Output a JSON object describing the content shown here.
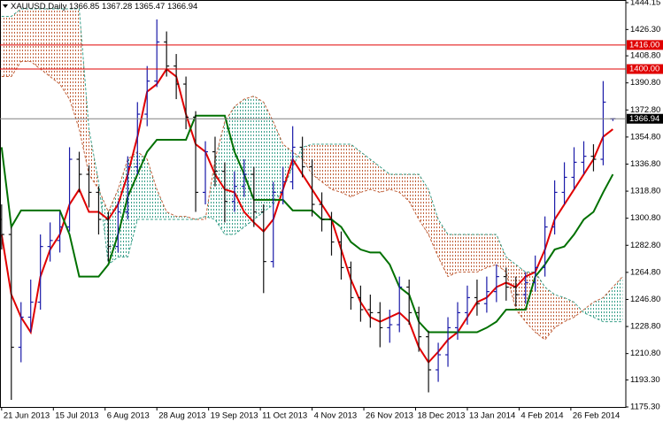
{
  "chart_data": {
    "type": "ohlc",
    "symbol": "XAUUSD,Daily",
    "x": [
      0,
      3,
      6,
      9,
      12,
      15,
      18,
      21,
      24,
      27,
      30,
      33,
      36,
      39,
      42,
      45,
      48,
      51,
      54,
      57,
      60,
      63,
      66,
      69,
      72,
      75,
      78,
      81,
      84,
      87,
      90,
      93,
      96,
      99,
      102,
      105,
      108,
      111,
      114,
      117,
      120,
      123,
      126,
      129,
      132,
      135,
      138,
      141,
      144,
      147,
      150,
      153,
      156,
      159,
      162,
      165,
      168,
      171,
      174,
      177,
      180,
      183,
      186,
      189
    ],
    "open": [
      1300,
      1290,
      1215,
      1235,
      1245,
      1282,
      1286,
      1295,
      1340,
      1330,
      1318,
      1300,
      1282,
      1305,
      1335,
      1370,
      1392,
      1418,
      1402,
      1390,
      1368,
      1318,
      1345,
      1332,
      1312,
      1322,
      1330,
      1305,
      1272,
      1318,
      1325,
      1348,
      1335,
      1310,
      1300,
      1285,
      1268,
      1248,
      1240,
      1238,
      1228,
      1230,
      1255,
      1238,
      1222,
      1200,
      1210,
      1228,
      1238,
      1248,
      1244,
      1252,
      1262,
      1255,
      1250,
      1258,
      1268,
      1295,
      1318,
      1328,
      1338,
      1342,
      1340,
      1366.85
    ],
    "high": [
      1310,
      1295,
      1245,
      1260,
      1290,
      1298,
      1305,
      1348,
      1345,
      1336,
      1322,
      1305,
      1312,
      1342,
      1378,
      1402,
      1433,
      1425,
      1410,
      1395,
      1372,
      1352,
      1355,
      1338,
      1332,
      1340,
      1335,
      1310,
      1325,
      1335,
      1362,
      1355,
      1340,
      1318,
      1305,
      1292,
      1272,
      1256,
      1250,
      1245,
      1240,
      1262,
      1260,
      1242,
      1226,
      1218,
      1235,
      1245,
      1256,
      1260,
      1262,
      1270,
      1268,
      1262,
      1265,
      1276,
      1302,
      1326,
      1338,
      1348,
      1352,
      1350,
      1392,
      1367.28
    ],
    "low": [
      1280,
      1180,
      1205,
      1225,
      1240,
      1272,
      1278,
      1292,
      1318,
      1308,
      1290,
      1272,
      1278,
      1300,
      1330,
      1362,
      1388,
      1395,
      1380,
      1360,
      1305,
      1310,
      1322,
      1298,
      1305,
      1315,
      1295,
      1251,
      1268,
      1310,
      1320,
      1328,
      1302,
      1292,
      1276,
      1260,
      1240,
      1232,
      1228,
      1215,
      1218,
      1225,
      1230,
      1212,
      1185,
      1192,
      1202,
      1220,
      1230,
      1236,
      1238,
      1245,
      1246,
      1242,
      1244,
      1252,
      1262,
      1290,
      1310,
      1320,
      1330,
      1332,
      1336,
      1365.47
    ],
    "close": [
      1290,
      1215,
      1235,
      1245,
      1282,
      1286,
      1295,
      1340,
      1330,
      1318,
      1300,
      1282,
      1305,
      1335,
      1370,
      1392,
      1418,
      1402,
      1390,
      1368,
      1318,
      1345,
      1332,
      1312,
      1322,
      1330,
      1305,
      1272,
      1318,
      1325,
      1348,
      1335,
      1310,
      1300,
      1285,
      1268,
      1248,
      1240,
      1238,
      1228,
      1230,
      1255,
      1238,
      1222,
      1200,
      1210,
      1228,
      1238,
      1248,
      1244,
      1252,
      1262,
      1255,
      1250,
      1258,
      1268,
      1295,
      1318,
      1328,
      1338,
      1342,
      1340,
      1378,
      1366.94
    ],
    "up_color": "#1a1aa8",
    "down_color": "#111111",
    "lines": [
      {
        "color": "#e00000",
        "values": [
          1290,
          1250,
          1235,
          1225,
          1262,
          1280,
          1290,
          1310,
          1320,
          1305,
          1305,
          1300,
          1310,
          1330,
          1355,
          1385,
          1390,
          1400,
          1395,
          1370,
          1350,
          1345,
          1330,
          1320,
          1318,
          1305,
          1298,
          1292,
          1300,
          1320,
          1340,
          1330,
          1320,
          1310,
          1300,
          1280,
          1260,
          1245,
          1235,
          1232,
          1235,
          1238,
          1232,
          1215,
          1205,
          1212,
          1220,
          1225,
          1235,
          1245,
          1248,
          1255,
          1258,
          1255,
          1262,
          1265,
          1280,
          1300,
          1310,
          1320,
          1330,
          1340,
          1355,
          1360
        ]
      },
      {
        "color": "#007000",
        "values": [
          1348,
          1295,
          1306,
          1306,
          1306,
          1306,
          1306,
          1290,
          1262,
          1262,
          1262,
          1270,
          1290,
          1315,
          1330,
          1345,
          1353,
          1353,
          1353,
          1353,
          1369,
          1369,
          1369,
          1369,
          1345,
          1330,
          1313,
          1313,
          1313,
          1313,
          1306,
          1306,
          1306,
          1300,
          1300,
          1295,
          1285,
          1280,
          1278,
          1278,
          1270,
          1255,
          1250,
          1232,
          1225,
          1225,
          1225,
          1225,
          1225,
          1225,
          1228,
          1232,
          1240,
          1240,
          1240,
          1262,
          1270,
          1280,
          1282,
          1290,
          1300,
          1305,
          1318,
          1330
        ]
      }
    ],
    "cloud": {
      "x": [
        0,
        3,
        6,
        9,
        12,
        15,
        18,
        21,
        24,
        27,
        30,
        33,
        36,
        39,
        42,
        45,
        48,
        51,
        54,
        57,
        60,
        63,
        66,
        69,
        72,
        75,
        78,
        81,
        84,
        87,
        90,
        93,
        96,
        99,
        102,
        105,
        108,
        111,
        114,
        117,
        120,
        123,
        126,
        129,
        132,
        135,
        138,
        141,
        144,
        147,
        150,
        153,
        156,
        159,
        162,
        165,
        168,
        171,
        174,
        177,
        180,
        183,
        186,
        189,
        192
      ],
      "span_a": [
        1395,
        1395,
        1405,
        1405,
        1400,
        1395,
        1390,
        1380,
        1360,
        1330,
        1320,
        1305,
        1320,
        1340,
        1345,
        1340,
        1320,
        1305,
        1302,
        1302,
        1300,
        1300,
        1340,
        1365,
        1375,
        1380,
        1382,
        1378,
        1365,
        1350,
        1345,
        1340,
        1330,
        1325,
        1320,
        1318,
        1315,
        1318,
        1320,
        1318,
        1320,
        1318,
        1312,
        1300,
        1290,
        1275,
        1262,
        1265,
        1265,
        1265,
        1268,
        1270,
        1265,
        1240,
        1232,
        1225,
        1220,
        1228,
        1232,
        1235,
        1240,
        1245,
        1248,
        1255,
        1262
      ],
      "span_b": [
        1435,
        1435,
        1440,
        1440,
        1440,
        1440,
        1440,
        1440,
        1440,
        1360,
        1325,
        1270,
        1275,
        1275,
        1300,
        1300,
        1300,
        1300,
        1300,
        1300,
        1300,
        1302,
        1300,
        1290,
        1290,
        1295,
        1300,
        1305,
        1310,
        1320,
        1335,
        1348,
        1350,
        1350,
        1350,
        1350,
        1350,
        1345,
        1340,
        1335,
        1330,
        1330,
        1330,
        1330,
        1320,
        1300,
        1290,
        1290,
        1290,
        1290,
        1290,
        1290,
        1275,
        1270,
        1265,
        1265,
        1255,
        1250,
        1248,
        1245,
        1238,
        1235,
        1232,
        1232,
        1232
      ],
      "up_color": "#3aa08a",
      "down_color": "#c0603a"
    },
    "levels": [
      {
        "value": 1416,
        "label": "1416.00"
      },
      {
        "value": 1400,
        "label": "1400.00"
      }
    ],
    "level_color": "#e00000",
    "xlim": [
      -0.5,
      193
    ],
    "ylim": [
      1175.3,
      1444.15
    ],
    "yticks": [
      1444.15,
      {
        "value": 1426.3,
        "label": "1426.30"
      },
      {
        "value": 1408.8,
        "label": "1408.80"
      },
      {
        "value": 1390.8,
        "label": "1390.80"
      },
      {
        "value": 1372.8,
        "label": "1372.80"
      },
      {
        "value": 1354.8,
        "label": "1354.80"
      },
      {
        "value": 1336.8,
        "label": "1336.80"
      },
      {
        "value": 1318.8,
        "label": "1318.80"
      },
      {
        "value": 1300.8,
        "label": "1300.80"
      },
      {
        "value": 1282.8,
        "label": "1282.80"
      },
      {
        "value": 1264.8,
        "label": "1264.80"
      },
      {
        "value": 1246.8,
        "label": "1246.80"
      },
      {
        "value": 1228.8,
        "label": "1228.80"
      },
      {
        "value": 1210.8,
        "label": "1210.80"
      },
      {
        "value": 1193.3,
        "label": "1193.30"
      },
      {
        "value": 1175.3,
        "label": "1175.30"
      }
    ],
    "xticks": [
      {
        "value": 0,
        "label": "21 Jun 2013"
      },
      {
        "value": 16,
        "label": "15 Jul 2013"
      },
      {
        "value": 32,
        "label": "6 Aug 2013"
      },
      {
        "value": 48,
        "label": "28 Aug 2013"
      },
      {
        "value": 64,
        "label": "19 Sep 2013"
      },
      {
        "value": 80,
        "label": "11 Oct 2013"
      },
      {
        "value": 96,
        "label": "4 Nov 2013"
      },
      {
        "value": 112,
        "label": "26 Nov 2013"
      },
      {
        "value": 128,
        "label": "18 Dec 2013"
      },
      {
        "value": 144,
        "label": "13 Jan 2014"
      },
      {
        "value": 160,
        "label": "4 Feb 2014"
      },
      {
        "value": 176,
        "label": "26 Feb 2014"
      }
    ]
  }
}
